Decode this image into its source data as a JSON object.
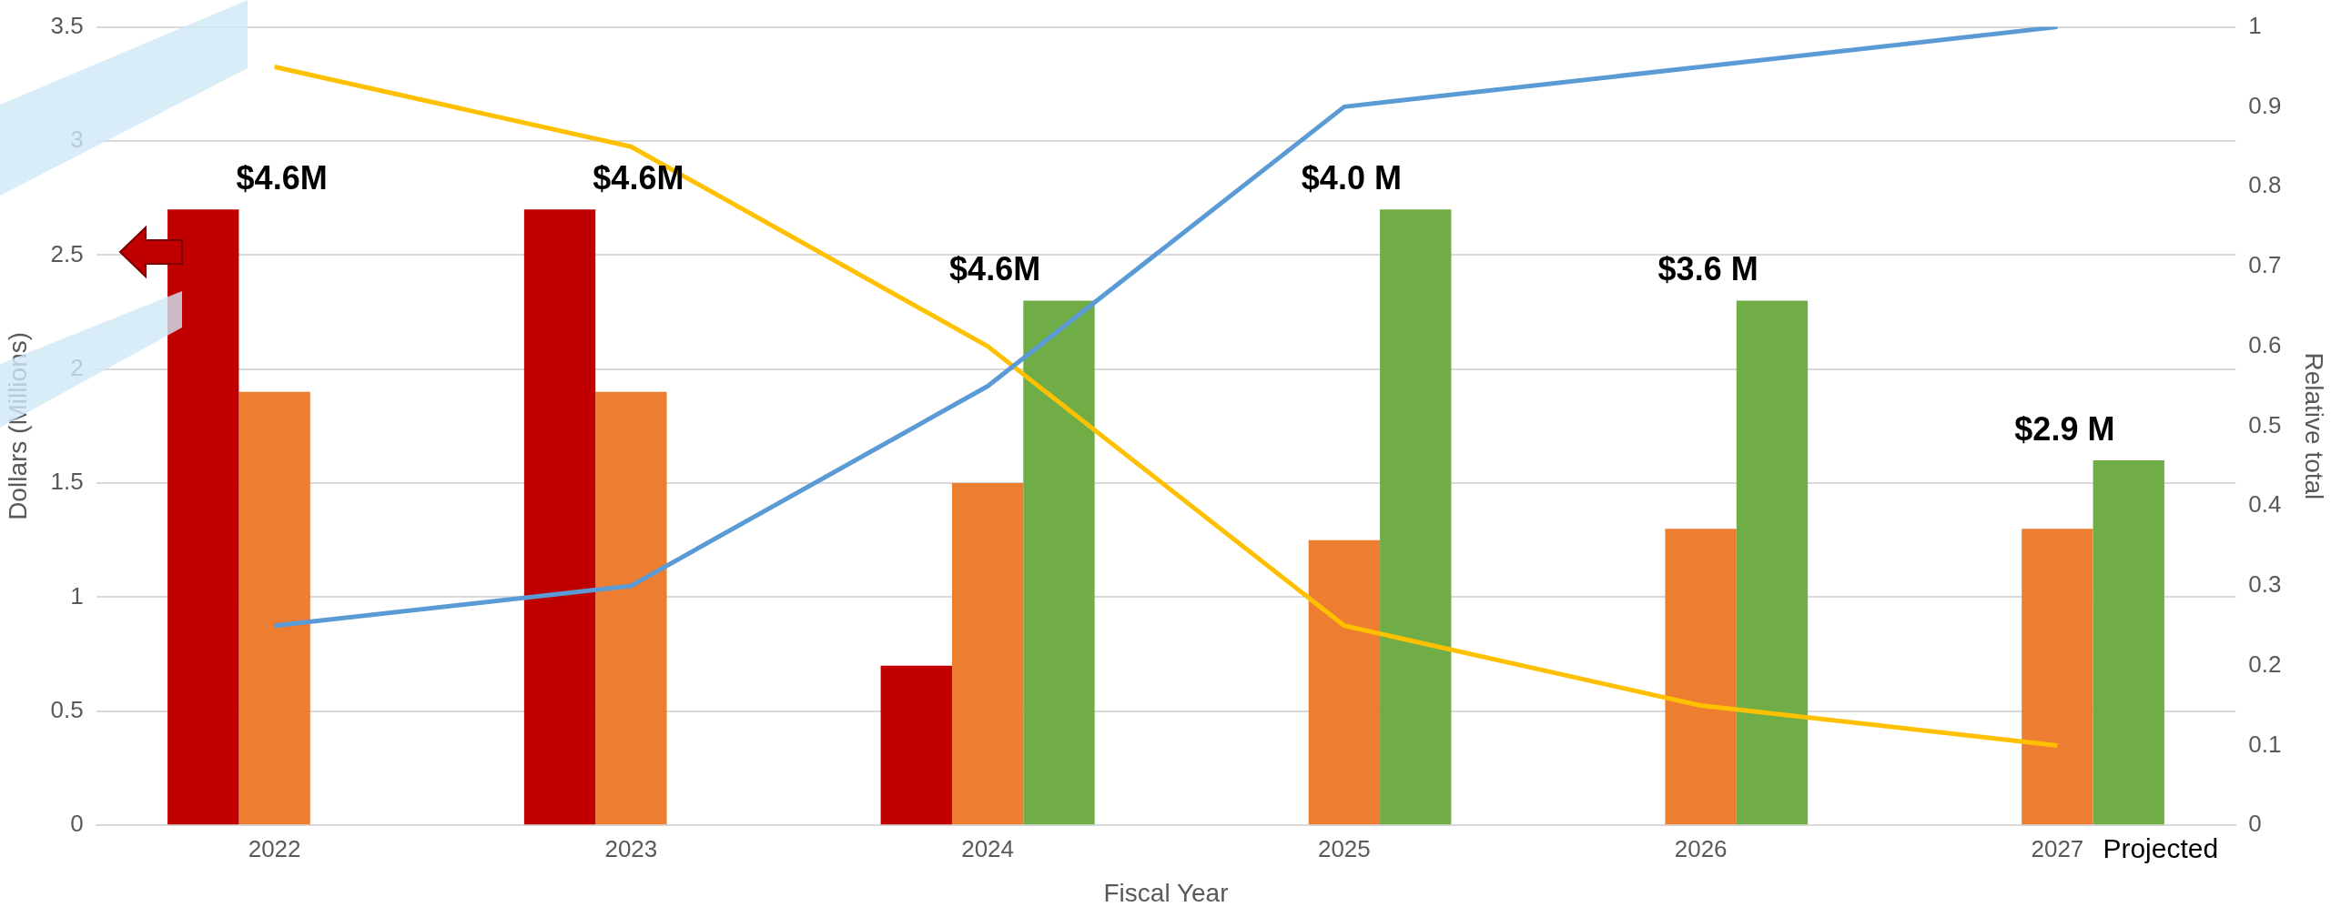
{
  "chart_data": {
    "type": "bar",
    "xlabel": "Fiscal Year",
    "ylabel": "Dollars (Millions)",
    "y2label": "Relative total",
    "categories": [
      "2022",
      "2023",
      "2024",
      "2025",
      "2026",
      "2027"
    ],
    "series": [
      {
        "color": "#c00000",
        "values": [
          2.7,
          2.7,
          0.7,
          null,
          null,
          null
        ]
      },
      {
        "color": "#ed7d31",
        "values": [
          1.9,
          1.9,
          1.5,
          1.25,
          1.3,
          1.3
        ]
      },
      {
        "color": "#70ad47",
        "values": [
          null,
          null,
          2.3,
          2.7,
          2.3,
          1.6
        ]
      },
      {
        "type": "line",
        "axis": "y2",
        "color": "#5b9bd5",
        "values": [
          0.25,
          0.3,
          0.55,
          0.9,
          0.95,
          1.0
        ]
      },
      {
        "type": "line",
        "axis": "y2",
        "color": "#ffc000",
        "values": [
          0.95,
          0.85,
          0.6,
          0.25,
          0.15,
          0.1
        ]
      }
    ],
    "ylim": [
      0,
      3.5
    ],
    "yticks": [
      0,
      0.5,
      1,
      {
        "value": 1.5,
        "label": "1.5"
      },
      2,
      {
        "value": 2.5,
        "label": "2.5"
      },
      3,
      {
        "value": 3.5,
        "label": "3.5"
      }
    ],
    "y2lim": [
      0,
      1
    ],
    "y2ticks": [
      0,
      0.1,
      0.2,
      0.3,
      0.4,
      0.5,
      0.6,
      0.7,
      0.8,
      0.9,
      1
    ],
    "grid": "y",
    "legend": false,
    "marker": "none",
    "line_style": "solid",
    "annotations": [
      "$4.6M",
      "$4.6M",
      "$4.6M",
      "$4.0 M",
      "$3.6 M",
      "$2.9 M",
      "Projected"
    ]
  }
}
